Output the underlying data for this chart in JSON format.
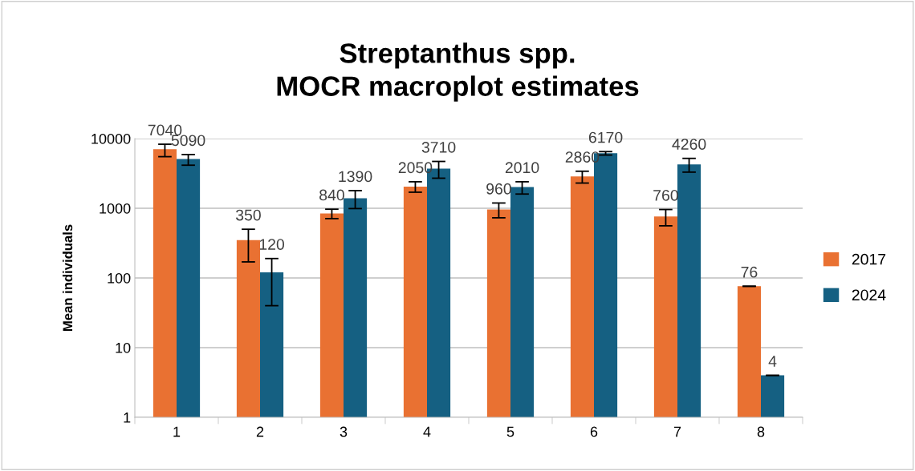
{
  "chart_data": {
    "type": "bar",
    "title": "Streptanthus spp.\nMOCR macroplot estimates",
    "ylabel": "Mean individuals",
    "categories": [
      "1",
      "2",
      "3",
      "4",
      "5",
      "6",
      "7",
      "8"
    ],
    "series": [
      {
        "name": "2017",
        "color": "#e97132",
        "values": [
          7040,
          350,
          840,
          2050,
          960,
          2860,
          760,
          76
        ],
        "errors": [
          [
            5500,
            8300
          ],
          [
            170,
            500
          ],
          [
            710,
            970
          ],
          [
            1700,
            2400
          ],
          [
            730,
            1190
          ],
          [
            2300,
            3400
          ],
          [
            560,
            960
          ],
          0
        ]
      },
      {
        "name": "2024",
        "color": "#156082",
        "values": [
          5090,
          120,
          1390,
          3710,
          2010,
          6170,
          4260,
          4
        ],
        "errors": [
          [
            4150,
            5900
          ],
          [
            40,
            190
          ],
          [
            990,
            1790
          ],
          [
            2700,
            4700
          ],
          [
            1600,
            2400
          ],
          [
            5800,
            6500
          ],
          [
            3300,
            5200
          ],
          0
        ]
      }
    ],
    "log": true,
    "ylim": [
      1,
      10000
    ],
    "yticks": [
      1,
      10,
      100,
      1000,
      10000
    ],
    "grid": "y",
    "legend": "right",
    "data_labels": true
  }
}
